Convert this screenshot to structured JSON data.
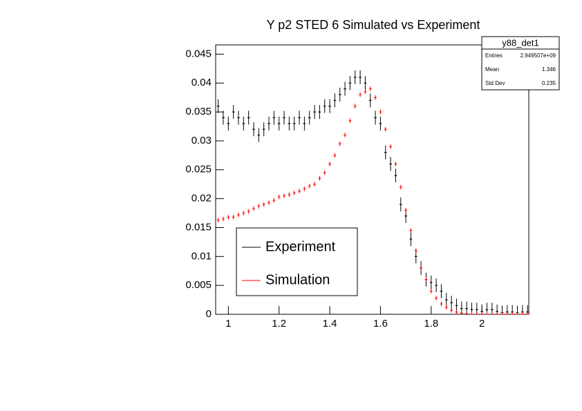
{
  "chart_data": {
    "type": "errorbar-scatter",
    "title": "Y p2 STED 6 Simulated vs Experiment",
    "x": [
      0.96,
      0.98,
      1.0,
      1.02,
      1.04,
      1.06,
      1.08,
      1.1,
      1.12,
      1.14,
      1.16,
      1.18,
      1.2,
      1.22,
      1.24,
      1.26,
      1.28,
      1.3,
      1.32,
      1.34,
      1.36,
      1.38,
      1.4,
      1.42,
      1.44,
      1.46,
      1.48,
      1.5,
      1.52,
      1.54,
      1.56,
      1.58,
      1.6,
      1.62,
      1.64,
      1.66,
      1.68,
      1.7,
      1.72,
      1.74,
      1.76,
      1.78,
      1.8,
      1.82,
      1.84,
      1.86,
      1.88,
      1.9,
      1.92,
      1.94,
      1.96,
      1.98,
      2.0,
      2.02,
      2.04,
      2.06,
      2.08,
      2.1,
      2.12,
      2.14,
      2.16,
      2.18
    ],
    "series": [
      {
        "name": "Experiment",
        "color": "#000000",
        "error": 0.0012,
        "values": [
          0.036,
          0.034,
          0.033,
          0.035,
          0.034,
          0.033,
          0.034,
          0.032,
          0.031,
          0.032,
          0.033,
          0.034,
          0.033,
          0.034,
          0.033,
          0.033,
          0.034,
          0.033,
          0.034,
          0.035,
          0.035,
          0.036,
          0.036,
          0.037,
          0.038,
          0.039,
          0.04,
          0.041,
          0.041,
          0.04,
          0.037,
          0.034,
          0.033,
          0.028,
          0.026,
          0.024,
          0.019,
          0.017,
          0.013,
          0.01,
          0.008,
          0.006,
          0.0055,
          0.005,
          0.004,
          0.0025,
          0.002,
          0.0015,
          0.001,
          0.001,
          0.0008,
          0.0008,
          0.0005,
          0.0008,
          0.0008,
          0.0005,
          0.0003,
          0.0004,
          0.0004,
          0.0003,
          0.0004,
          0.0004
        ]
      },
      {
        "name": "Simulation",
        "color": "#ff0000",
        "error": 0.0004,
        "values": [
          0.0163,
          0.0165,
          0.0168,
          0.0168,
          0.0172,
          0.0175,
          0.0178,
          0.0183,
          0.0187,
          0.019,
          0.0193,
          0.0197,
          0.0203,
          0.0205,
          0.0207,
          0.021,
          0.0213,
          0.0217,
          0.0222,
          0.0225,
          0.0235,
          0.0245,
          0.026,
          0.0275,
          0.0295,
          0.031,
          0.0335,
          0.036,
          0.038,
          0.0385,
          0.039,
          0.0375,
          0.035,
          0.032,
          0.029,
          0.026,
          0.022,
          0.018,
          0.0145,
          0.011,
          0.008,
          0.006,
          0.004,
          0.0028,
          0.0018,
          0.0012,
          0.0007,
          0.0004,
          0.0002,
          0.0001,
          0,
          0,
          0,
          0,
          0,
          0,
          0,
          0,
          0,
          0,
          0,
          0
        ]
      }
    ],
    "xlim": [
      0.95,
      2.185
    ],
    "ylim": [
      0,
      0.0466
    ],
    "xticks": [
      1,
      1.2,
      1.4,
      1.6,
      1.8,
      2
    ],
    "yticks": [
      0,
      0.005,
      0.01,
      0.015,
      0.02,
      0.025,
      0.03,
      0.035,
      0.04,
      0.045
    ],
    "grid": false,
    "legend": "lower-left",
    "stats_box": {
      "title": "y88_det1",
      "rows": [
        [
          "Entries",
          "2.949507e+09"
        ],
        [
          "Mean",
          "1.346"
        ],
        [
          "Std Dev",
          "0.235"
        ]
      ]
    }
  }
}
